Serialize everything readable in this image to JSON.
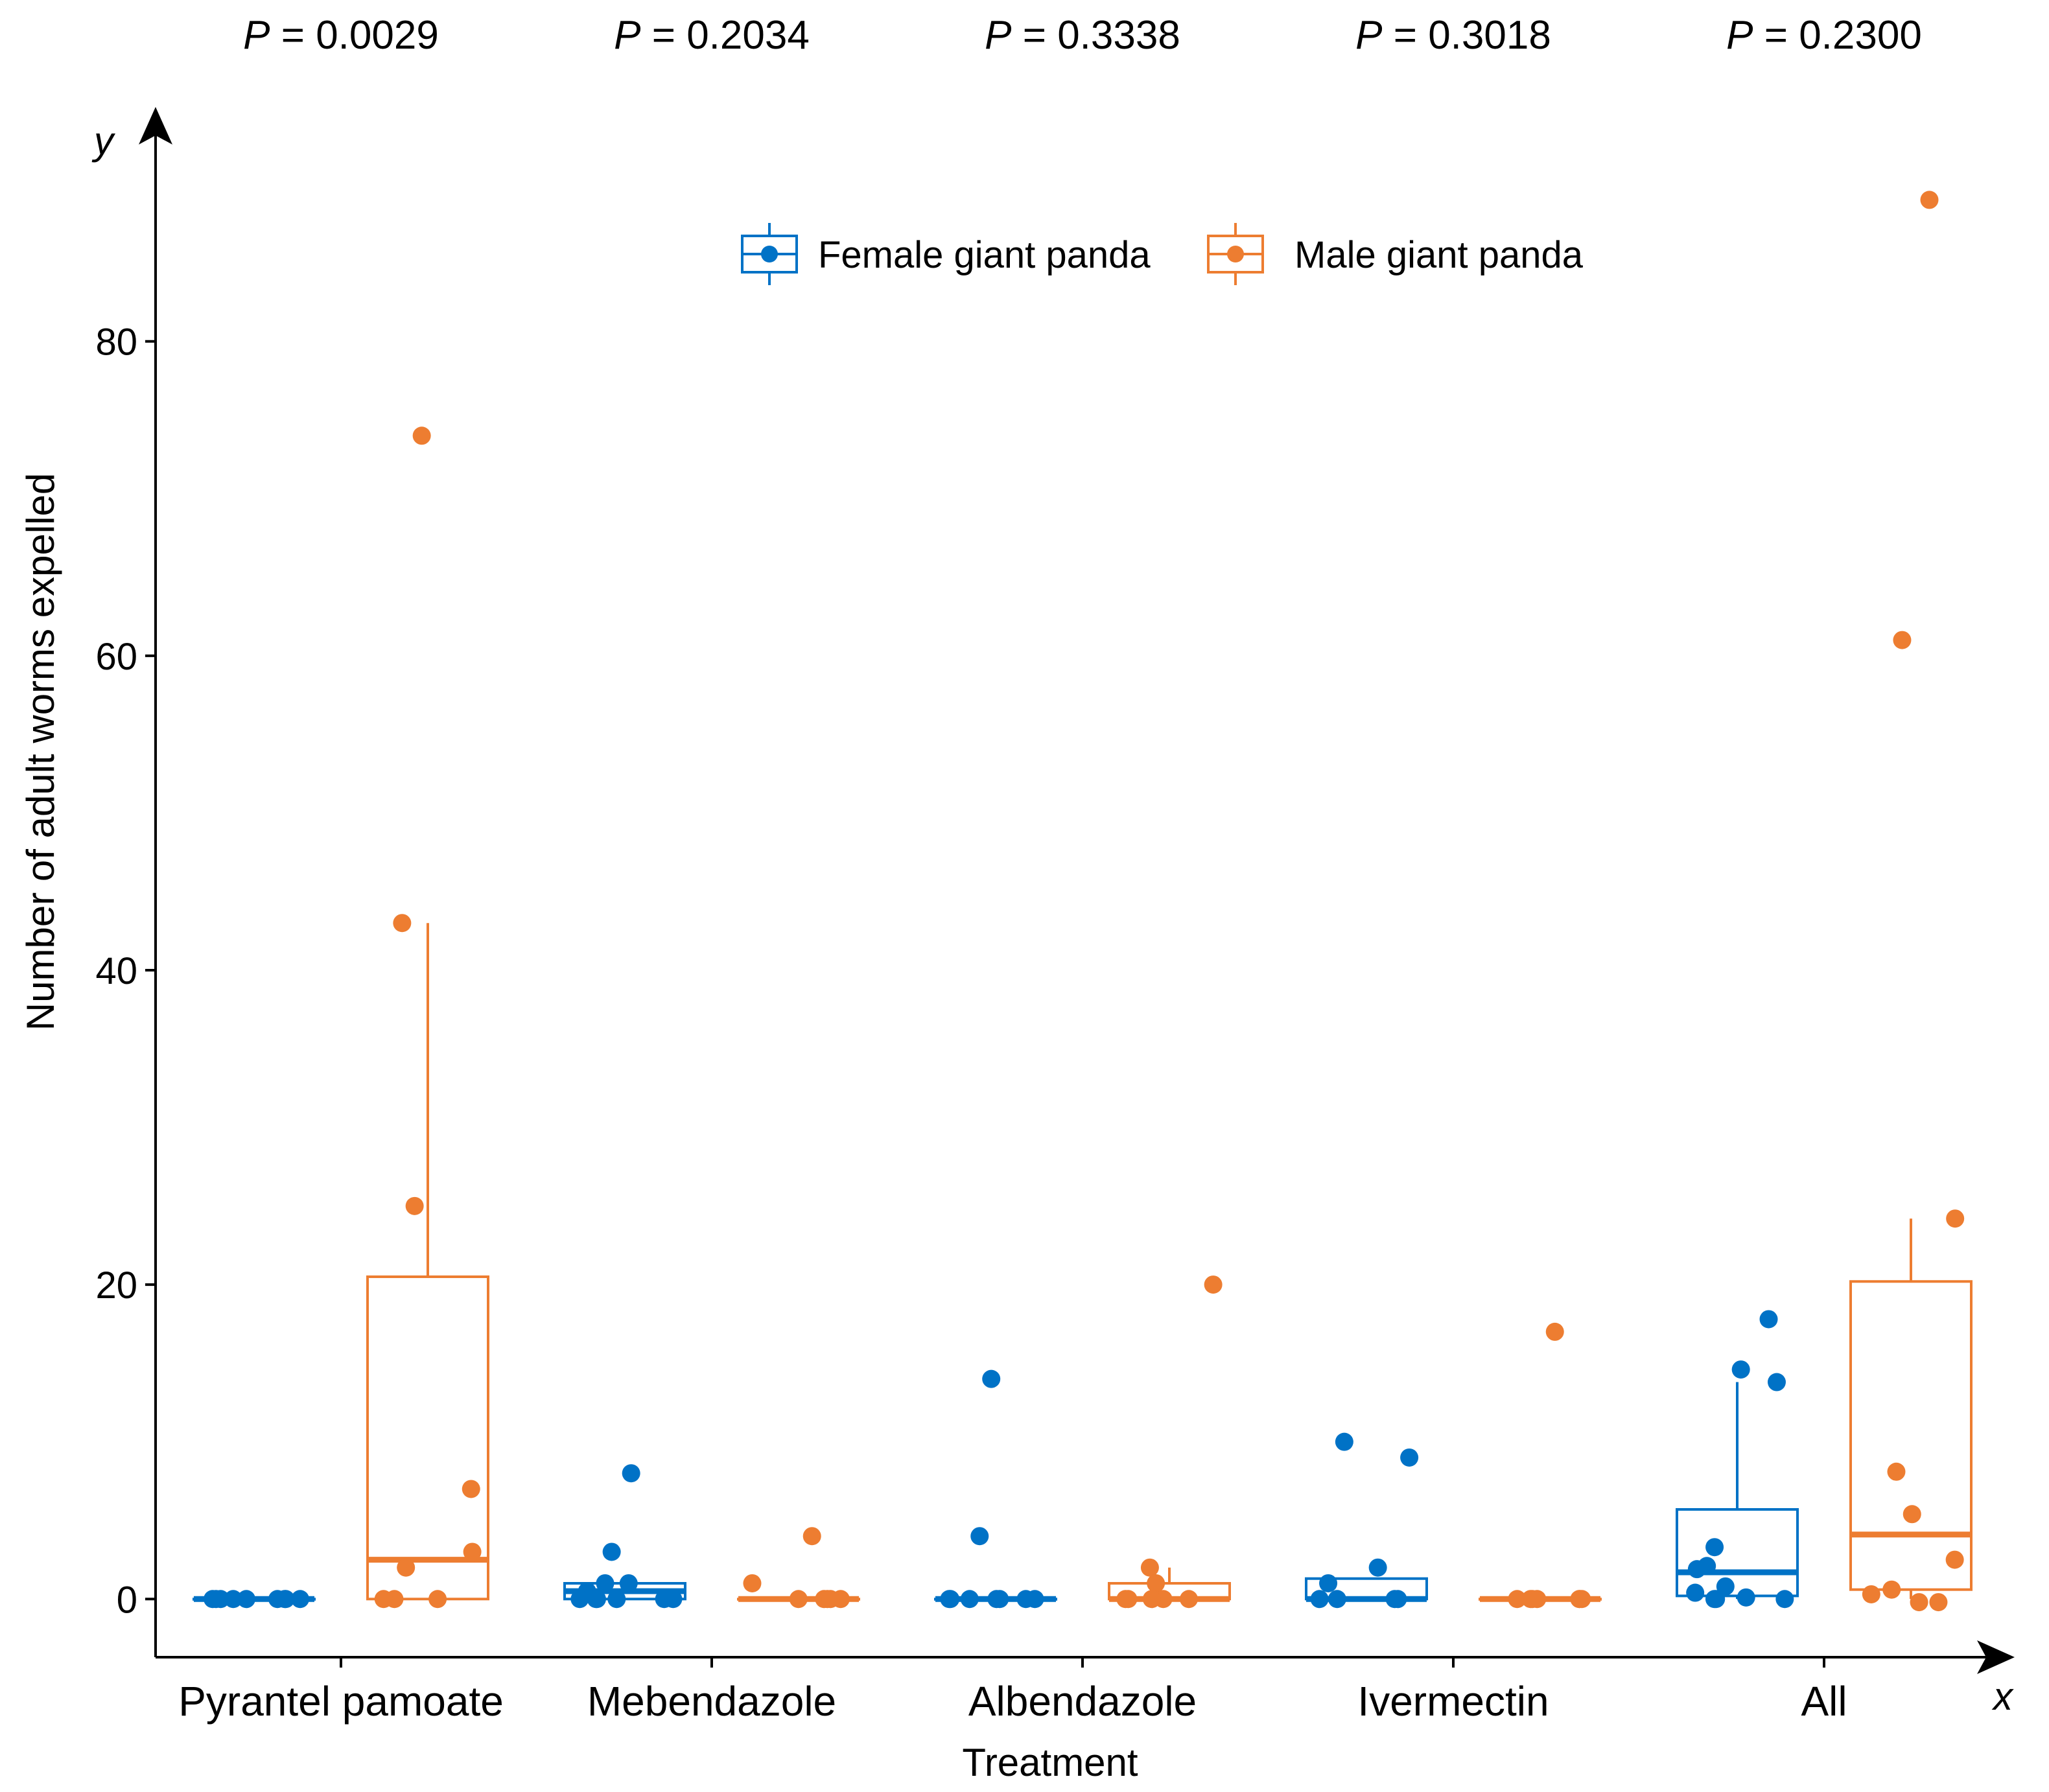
{
  "chart_data": {
    "type": "box",
    "xlabel": "Treatment",
    "ylabel": "Number of adult worms expelled",
    "x_axis_marker": "x",
    "y_axis_marker": "y",
    "ylim": [
      -3.7,
      94.5
    ],
    "y_ticks": [
      0,
      20,
      40,
      60,
      80
    ],
    "categories": [
      "Pyrantel pamoate",
      "Mebendazole",
      "Albendazole",
      "Ivermectin",
      "All"
    ],
    "p_value_prefix": "P",
    "p_values": [
      "= 0.0029",
      "= 0.2034",
      "= 0.3338",
      "= 0.3018",
      "= 0.2300"
    ],
    "legend_position": "top",
    "series": [
      {
        "name": "Female giant panda",
        "color": "#0072C6",
        "boxes": [
          {
            "q1": 0,
            "median": 0,
            "q3": 0,
            "whisker_low": 0,
            "whisker_high": 0
          },
          {
            "q1": 0,
            "median": 0.5,
            "q3": 1,
            "whisker_low": 0,
            "whisker_high": 1
          },
          {
            "q1": 0,
            "median": 0,
            "q3": 0,
            "whisker_low": 0,
            "whisker_high": 0
          },
          {
            "q1": 0,
            "median": 0,
            "q3": 1.3,
            "whisker_low": 0,
            "whisker_high": 1.3
          },
          {
            "q1": 0.2,
            "median": 1.7,
            "q3": 5.7,
            "whisker_low": 0,
            "whisker_high": 13.8
          }
        ],
        "points": [
          [
            0,
            0,
            0,
            0,
            0,
            0,
            0,
            0,
            0
          ],
          [
            8,
            3,
            1,
            1,
            0.5,
            0,
            0,
            0,
            0,
            0,
            0
          ],
          [
            14,
            4,
            0,
            0,
            0,
            0,
            0,
            0,
            0
          ],
          [
            10,
            9,
            2,
            1,
            0,
            0,
            0,
            0
          ],
          [
            17.8,
            14.6,
            13.8,
            3.3,
            2.1,
            1.9,
            0.8,
            0.4,
            0.1,
            0,
            0,
            0
          ]
        ]
      },
      {
        "name": "Male giant panda",
        "color": "#ED7D31",
        "boxes": [
          {
            "q1": 0,
            "median": 2.5,
            "q3": 20.5,
            "whisker_low": 0,
            "whisker_high": 43
          },
          {
            "q1": 0,
            "median": 0,
            "q3": 0,
            "whisker_low": 0,
            "whisker_high": 0
          },
          {
            "q1": 0,
            "median": 0,
            "q3": 1,
            "whisker_low": 0,
            "whisker_high": 2
          },
          {
            "q1": 0,
            "median": 0,
            "q3": 0,
            "whisker_low": 0,
            "whisker_high": 0
          },
          {
            "q1": 0.6,
            "median": 4.1,
            "q3": 20.2,
            "whisker_low": 0,
            "whisker_high": 24.2
          }
        ],
        "points": [
          [
            74,
            43,
            25,
            7,
            3,
            2,
            0,
            0,
            0
          ],
          [
            4,
            1,
            0,
            0,
            0,
            0,
            0
          ],
          [
            20,
            2,
            1,
            0,
            0,
            0,
            0,
            0
          ],
          [
            17,
            0,
            0,
            0,
            0,
            0,
            0,
            0
          ],
          [
            89,
            61,
            24.2,
            8.1,
            5.4,
            2.5,
            0.6,
            0.3,
            -0.2,
            -0.2
          ]
        ]
      }
    ]
  }
}
